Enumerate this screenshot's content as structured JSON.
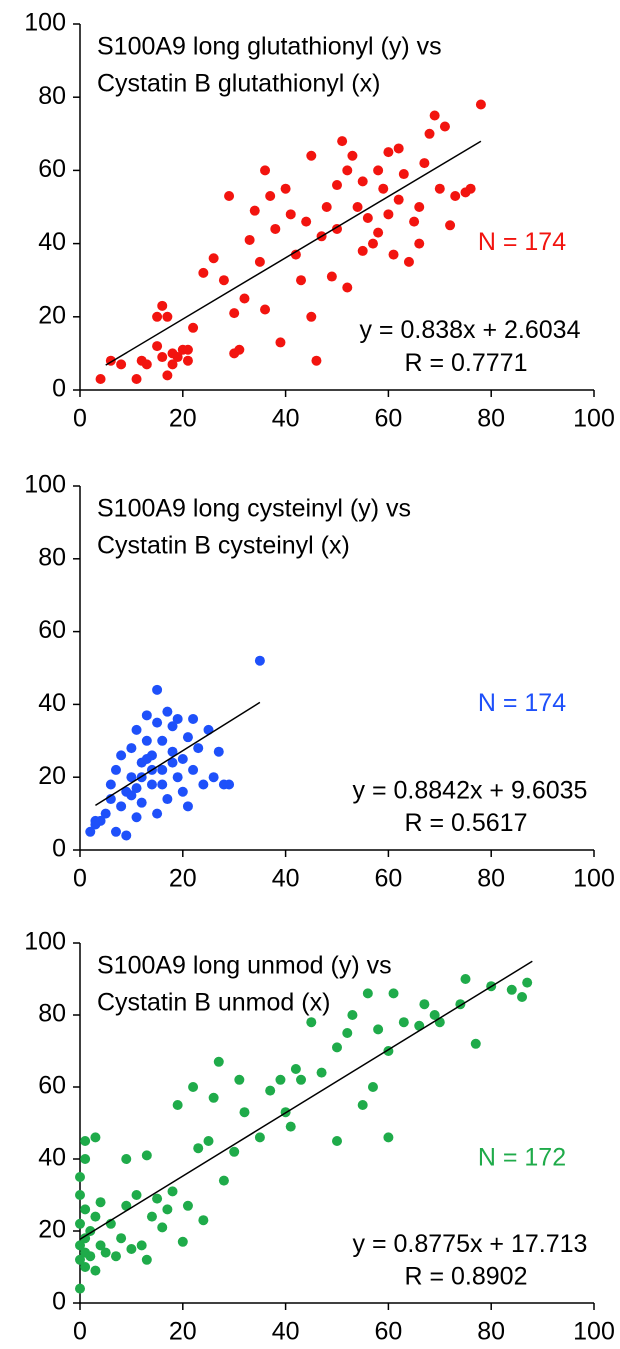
{
  "chart_data": [
    {
      "type": "scatter",
      "title": [
        "S100A9 long glutathionyl (y) vs",
        "Cystatin B glutathionyl (x)"
      ],
      "n_label": "N = 174",
      "equation": "y = 0.838x + 2.6034",
      "r_label": "R = 0.7771",
      "color": "#f2140f",
      "xlim": [
        0,
        100
      ],
      "ylim": [
        0,
        100
      ],
      "xticks": [
        0,
        20,
        40,
        60,
        80,
        100
      ],
      "yticks": [
        0,
        20,
        40,
        60,
        80,
        100
      ],
      "trendline": {
        "x": [
          5,
          78
        ],
        "y": [
          6.79,
          67.97
        ]
      },
      "x": [
        4,
        6,
        8,
        11,
        12,
        13,
        15,
        15,
        16,
        16,
        17,
        17,
        18,
        18,
        19,
        20,
        21,
        21,
        22,
        24,
        26,
        28,
        29,
        30,
        30,
        31,
        32,
        33,
        34,
        35,
        36,
        36,
        37,
        38,
        39,
        40,
        41,
        42,
        43,
        44,
        45,
        45,
        46,
        47,
        48,
        49,
        50,
        50,
        51,
        52,
        52,
        53,
        54,
        55,
        56,
        57,
        58,
        59,
        60,
        60,
        61,
        62,
        63,
        64,
        65,
        66,
        67,
        68,
        69,
        70,
        71,
        72,
        73,
        75,
        76,
        78,
        62,
        66,
        58,
        55
      ],
      "y": [
        3,
        8,
        7,
        3,
        8,
        7,
        12,
        20,
        23,
        9,
        4,
        20,
        7,
        10,
        9,
        11,
        8,
        11,
        17,
        32,
        36,
        30,
        53,
        10,
        21,
        11,
        25,
        41,
        49,
        35,
        60,
        22,
        53,
        44,
        13,
        55,
        48,
        37,
        30,
        46,
        64,
        20,
        8,
        42,
        50,
        31,
        56,
        44,
        68,
        60,
        28,
        64,
        50,
        57,
        47,
        40,
        60,
        55,
        48,
        65,
        37,
        52,
        59,
        35,
        46,
        40,
        62,
        70,
        75,
        55,
        72,
        45,
        53,
        54,
        55,
        78,
        66,
        50,
        43,
        38
      ]
    },
    {
      "type": "scatter",
      "title": [
        "S100A9 long cysteinyl (y) vs",
        "Cystatin B cysteinyl (x)"
      ],
      "n_label": "N = 174",
      "equation": "y = 0.8842x + 9.6035",
      "r_label": "R = 0.5617",
      "color": "#1e50fa",
      "xlim": [
        0,
        100
      ],
      "ylim": [
        0,
        100
      ],
      "xticks": [
        0,
        20,
        40,
        60,
        80,
        100
      ],
      "yticks": [
        0,
        20,
        40,
        60,
        80,
        100
      ],
      "trendline": {
        "x": [
          3,
          35
        ],
        "y": [
          12.26,
          40.55
        ]
      },
      "x": [
        2,
        3,
        3,
        4,
        5,
        6,
        6,
        7,
        7,
        8,
        8,
        9,
        9,
        10,
        10,
        11,
        11,
        12,
        12,
        13,
        13,
        14,
        14,
        15,
        15,
        15,
        16,
        16,
        17,
        17,
        18,
        18,
        19,
        19,
        20,
        20,
        21,
        21,
        22,
        22,
        23,
        24,
        25,
        26,
        27,
        28,
        29,
        35,
        12,
        14,
        10,
        13,
        16,
        18,
        11
      ],
      "y": [
        5,
        7,
        8,
        8,
        10,
        14,
        18,
        5,
        22,
        12,
        26,
        4,
        16,
        20,
        28,
        9,
        33,
        24,
        13,
        30,
        37,
        18,
        26,
        35,
        44,
        10,
        22,
        30,
        38,
        14,
        27,
        34,
        20,
        36,
        25,
        16,
        31,
        12,
        36,
        22,
        28,
        18,
        33,
        20,
        27,
        18,
        18,
        52,
        20,
        22,
        15,
        25,
        18,
        24,
        17
      ]
    },
    {
      "type": "scatter",
      "title": [
        "S100A9 long unmod (y) vs",
        "Cystatin B unmod (x)"
      ],
      "n_label": "N = 172",
      "equation": "y = 0.8775x + 17.713",
      "r_label": "R = 0.8902",
      "color": "#1fab4a",
      "xlim": [
        0,
        100
      ],
      "ylim": [
        0,
        100
      ],
      "xticks": [
        0,
        20,
        40,
        60,
        80,
        100
      ],
      "yticks": [
        0,
        20,
        40,
        60,
        80,
        100
      ],
      "trendline": {
        "x": [
          0,
          88
        ],
        "y": [
          17.71,
          94.93
        ]
      },
      "x": [
        0,
        0,
        0,
        0,
        0,
        0,
        1,
        1,
        1,
        1,
        1,
        1,
        2,
        2,
        3,
        3,
        3,
        4,
        4,
        5,
        6,
        7,
        8,
        9,
        9,
        10,
        11,
        12,
        13,
        13,
        14,
        15,
        16,
        17,
        18,
        19,
        20,
        21,
        22,
        23,
        24,
        25,
        26,
        27,
        28,
        30,
        31,
        32,
        35,
        37,
        39,
        40,
        41,
        42,
        43,
        45,
        47,
        50,
        50,
        52,
        53,
        55,
        56,
        57,
        58,
        60,
        60,
        61,
        63,
        66,
        67,
        69,
        70,
        74,
        75,
        77,
        80,
        84,
        86,
        87
      ],
      "y": [
        4,
        12,
        16,
        22,
        30,
        35,
        10,
        14,
        18,
        26,
        40,
        45,
        13,
        20,
        9,
        24,
        46,
        16,
        28,
        14,
        22,
        13,
        18,
        27,
        40,
        15,
        30,
        16,
        12,
        41,
        24,
        29,
        21,
        26,
        31,
        55,
        17,
        27,
        60,
        43,
        23,
        45,
        57,
        67,
        34,
        42,
        62,
        53,
        46,
        59,
        62,
        53,
        49,
        65,
        62,
        78,
        64,
        45,
        71,
        75,
        80,
        55,
        86,
        60,
        76,
        46,
        70,
        86,
        78,
        77,
        83,
        80,
        78,
        83,
        90,
        72,
        88,
        87,
        85,
        89
      ]
    }
  ]
}
